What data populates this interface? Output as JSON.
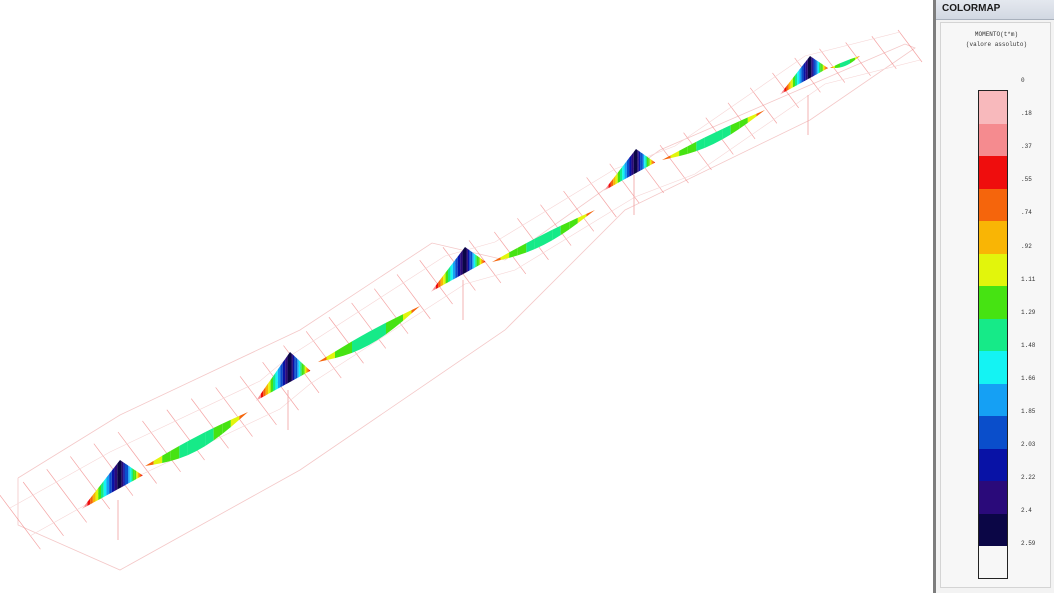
{
  "panel": {
    "title": "COLORMAP",
    "quantity": "MOMENTO(t*m)",
    "mode": "(valore assoluto)"
  },
  "legend": {
    "ticks": [
      "0",
      ".18",
      ".37",
      ".55",
      ".74",
      ".92",
      "1.11",
      "1.29",
      "1.48",
      "1.66",
      "1.85",
      "2.03",
      "2.22",
      "2.4",
      "2.59"
    ],
    "colors": [
      "#f8b9bc",
      "#f58b8f",
      "#ef0d0d",
      "#f5650c",
      "#f9b505",
      "#e2f50c",
      "#46e312",
      "#16ea88",
      "#14f3f3",
      "#15a0f4",
      "#0a4ecb",
      "#0812a6",
      "#2a0a7a",
      "#0b0646"
    ]
  }
}
